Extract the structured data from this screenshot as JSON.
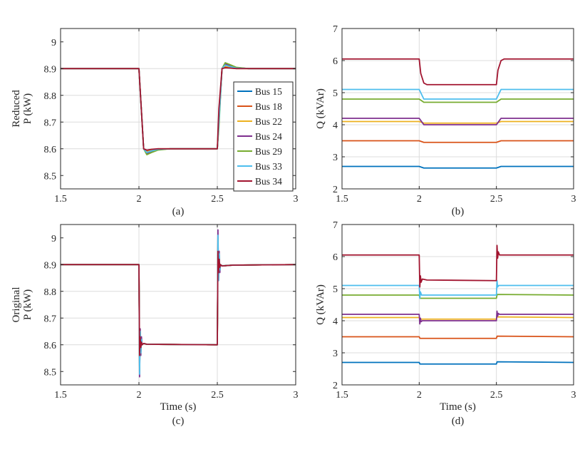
{
  "chart_data": [
    {
      "type": "line",
      "id": "a",
      "caption": "(a)",
      "ylabel_lines": [
        "Reduced",
        "P (kW)"
      ],
      "xlabel": "",
      "xlim": [
        1.5,
        3
      ],
      "ylim": [
        8.45,
        9.05
      ],
      "xticks": [
        1.5,
        2,
        2.5,
        3
      ],
      "xtick_labels": [
        "1.5",
        "2",
        "2.5",
        "3"
      ],
      "yticks": [
        8.5,
        8.6,
        8.7,
        8.8,
        8.9,
        9
      ],
      "ytick_labels": [
        "8.5",
        "8.6",
        "8.7",
        "8.8",
        "8.9",
        "9"
      ],
      "grid": true,
      "legend": {
        "position": "right",
        "entries": [
          "Bus 15",
          "Bus 18",
          "Bus 22",
          "Bus 24",
          "Bus 29",
          "Bus 33",
          "Bus 34"
        ]
      },
      "series": [
        {
          "name": "Bus 15",
          "color": "#0072BD",
          "x": [
            1.5,
            1.99,
            2.0,
            2.01,
            2.03,
            2.05,
            2.08,
            2.12,
            2.2,
            2.49,
            2.5,
            2.51,
            2.53,
            2.55,
            2.58,
            2.62,
            2.7,
            3.0
          ],
          "y": [
            8.9,
            8.9,
            8.9,
            8.8,
            8.6,
            8.585,
            8.59,
            8.597,
            8.6,
            8.6,
            8.6,
            8.7,
            8.9,
            8.915,
            8.91,
            8.903,
            8.9,
            8.9
          ]
        },
        {
          "name": "Bus 18",
          "color": "#D95319",
          "x": [
            1.5,
            1.99,
            2.0,
            2.01,
            2.03,
            2.05,
            2.08,
            2.12,
            2.2,
            2.49,
            2.5,
            2.51,
            2.53,
            2.55,
            2.58,
            2.62,
            2.7,
            3.0
          ],
          "y": [
            8.9,
            8.9,
            8.9,
            8.8,
            8.6,
            8.59,
            8.595,
            8.6,
            8.6,
            8.6,
            8.6,
            8.72,
            8.9,
            8.905,
            8.903,
            8.9,
            8.9,
            8.9
          ]
        },
        {
          "name": "Bus 22",
          "color": "#EDB120",
          "x": [
            1.5,
            1.99,
            2.0,
            2.01,
            2.03,
            2.05,
            2.08,
            2.12,
            2.2,
            2.49,
            2.5,
            2.51,
            2.53,
            2.55,
            2.58,
            2.62,
            2.7,
            3.0
          ],
          "y": [
            8.9,
            8.9,
            8.9,
            8.8,
            8.6,
            8.588,
            8.594,
            8.599,
            8.6,
            8.6,
            8.6,
            8.7,
            8.9,
            8.91,
            8.906,
            8.901,
            8.9,
            8.9
          ]
        },
        {
          "name": "Bus 24",
          "color": "#7E2F8E",
          "x": [
            1.5,
            1.99,
            2.0,
            2.01,
            2.03,
            2.05,
            2.08,
            2.12,
            2.2,
            2.49,
            2.5,
            2.51,
            2.53,
            2.55,
            2.58,
            2.62,
            2.7,
            3.0
          ],
          "y": [
            8.9,
            8.9,
            8.9,
            8.8,
            8.6,
            8.583,
            8.59,
            8.597,
            8.6,
            8.6,
            8.6,
            8.7,
            8.9,
            8.918,
            8.912,
            8.904,
            8.9,
            8.9
          ]
        },
        {
          "name": "Bus 29",
          "color": "#77AC30",
          "x": [
            1.5,
            1.99,
            2.0,
            2.01,
            2.03,
            2.05,
            2.08,
            2.12,
            2.2,
            2.49,
            2.5,
            2.51,
            2.53,
            2.55,
            2.58,
            2.62,
            2.7,
            3.0
          ],
          "y": [
            8.9,
            8.9,
            8.9,
            8.8,
            8.6,
            8.578,
            8.586,
            8.595,
            8.6,
            8.6,
            8.6,
            8.68,
            8.9,
            8.922,
            8.915,
            8.905,
            8.9,
            8.9
          ]
        },
        {
          "name": "Bus 33",
          "color": "#4DBEEE",
          "x": [
            1.5,
            1.99,
            2.0,
            2.01,
            2.03,
            2.05,
            2.08,
            2.12,
            2.2,
            2.49,
            2.5,
            2.51,
            2.53,
            2.55,
            2.58,
            2.62,
            2.7,
            3.0
          ],
          "y": [
            8.9,
            8.9,
            8.9,
            8.8,
            8.6,
            8.586,
            8.592,
            8.598,
            8.6,
            8.6,
            8.6,
            8.7,
            8.9,
            8.913,
            8.908,
            8.902,
            8.9,
            8.9
          ]
        },
        {
          "name": "Bus 34",
          "color": "#A2142F",
          "x": [
            1.5,
            1.99,
            2.0,
            2.01,
            2.03,
            2.05,
            2.08,
            2.12,
            2.2,
            2.49,
            2.5,
            2.51,
            2.53,
            2.55,
            2.58,
            2.62,
            2.7,
            3.0
          ],
          "y": [
            8.9,
            8.9,
            8.9,
            8.8,
            8.6,
            8.595,
            8.598,
            8.6,
            8.6,
            8.6,
            8.6,
            8.75,
            8.9,
            8.903,
            8.902,
            8.9,
            8.9,
            8.9
          ]
        }
      ]
    },
    {
      "type": "line",
      "id": "b",
      "caption": "(b)",
      "ylabel": "Q (kVAr)",
      "xlabel": "",
      "xlim": [
        1.5,
        3
      ],
      "ylim": [
        2,
        7
      ],
      "xticks": [
        1.5,
        2,
        2.5,
        3
      ],
      "xtick_labels": [
        "1.5",
        "2",
        "2.5",
        "3"
      ],
      "yticks": [
        2,
        3,
        4,
        5,
        6,
        7
      ],
      "ytick_labels": [
        "2",
        "3",
        "4",
        "5",
        "6",
        "7"
      ],
      "grid": true,
      "series": [
        {
          "name": "Bus 15",
          "color": "#0072BD",
          "x": [
            1.5,
            2.0,
            2.03,
            2.5,
            2.53,
            3.0
          ],
          "y": [
            2.7,
            2.7,
            2.65,
            2.65,
            2.7,
            2.7
          ]
        },
        {
          "name": "Bus 18",
          "color": "#D95319",
          "x": [
            1.5,
            2.0,
            2.03,
            2.5,
            2.53,
            3.0
          ],
          "y": [
            3.5,
            3.5,
            3.45,
            3.45,
            3.5,
            3.5
          ]
        },
        {
          "name": "Bus 22",
          "color": "#EDB120",
          "x": [
            1.5,
            2.0,
            2.03,
            2.5,
            2.53,
            3.0
          ],
          "y": [
            4.1,
            4.1,
            4.05,
            4.05,
            4.1,
            4.1
          ]
        },
        {
          "name": "Bus 24",
          "color": "#7E2F8E",
          "x": [
            1.5,
            2.0,
            2.03,
            2.5,
            2.53,
            3.0
          ],
          "y": [
            4.2,
            4.2,
            4.0,
            4.0,
            4.2,
            4.2
          ]
        },
        {
          "name": "Bus 29",
          "color": "#77AC30",
          "x": [
            1.5,
            2.0,
            2.03,
            2.5,
            2.53,
            3.0
          ],
          "y": [
            4.8,
            4.8,
            4.7,
            4.7,
            4.8,
            4.8
          ]
        },
        {
          "name": "Bus 33",
          "color": "#4DBEEE",
          "x": [
            1.5,
            2.0,
            2.03,
            2.5,
            2.53,
            3.0
          ],
          "y": [
            5.1,
            5.1,
            4.8,
            4.8,
            5.1,
            5.1
          ]
        },
        {
          "name": "Bus 34",
          "color": "#A2142F",
          "x": [
            1.5,
            2.0,
            2.01,
            2.03,
            2.05,
            2.5,
            2.51,
            2.53,
            2.55,
            3.0
          ],
          "y": [
            6.05,
            6.05,
            5.6,
            5.3,
            5.25,
            5.25,
            5.7,
            6.0,
            6.05,
            6.05
          ]
        }
      ]
    },
    {
      "type": "line",
      "id": "c",
      "caption": "(c)",
      "ylabel_lines": [
        "Original",
        "P (kW)"
      ],
      "xlabel": "Time (s)",
      "xlim": [
        1.5,
        3
      ],
      "ylim": [
        8.45,
        9.05
      ],
      "xticks": [
        1.5,
        2,
        2.5,
        3
      ],
      "xtick_labels": [
        "1.5",
        "2",
        "2.5",
        "3"
      ],
      "yticks": [
        8.5,
        8.6,
        8.7,
        8.8,
        8.9,
        9
      ],
      "ytick_labels": [
        "8.5",
        "8.6",
        "8.7",
        "8.8",
        "8.9",
        "9"
      ],
      "grid": true,
      "series": [
        {
          "name": "Bus 15",
          "color": "#0072BD",
          "x": [
            1.5,
            2.0,
            2.004,
            2.008,
            2.012,
            2.016,
            2.02,
            2.03,
            2.05,
            2.5,
            2.504,
            2.508,
            2.512,
            2.516,
            2.52,
            2.53,
            2.6,
            3.0
          ],
          "y": [
            8.9,
            8.9,
            8.52,
            8.64,
            8.58,
            8.62,
            8.6,
            8.605,
            8.602,
            8.6,
            8.98,
            8.86,
            8.93,
            8.88,
            8.9,
            8.895,
            8.898,
            8.9
          ]
        },
        {
          "name": "Bus 18",
          "color": "#D95319",
          "x": [
            1.5,
            2.0,
            2.004,
            2.008,
            2.012,
            2.016,
            2.02,
            2.03,
            2.05,
            2.5,
            2.504,
            2.508,
            2.512,
            2.516,
            2.52,
            2.53,
            2.6,
            3.0
          ],
          "y": [
            8.9,
            8.9,
            8.55,
            8.63,
            8.59,
            8.61,
            8.6,
            8.605,
            8.602,
            8.6,
            8.96,
            8.87,
            8.92,
            8.89,
            8.9,
            8.895,
            8.898,
            8.9
          ]
        },
        {
          "name": "Bus 22",
          "color": "#EDB120",
          "x": [
            1.5,
            2.0,
            2.004,
            2.008,
            2.012,
            2.016,
            2.02,
            2.03,
            2.05,
            2.5,
            2.504,
            2.508,
            2.512,
            2.516,
            2.52,
            2.53,
            2.6,
            3.0
          ],
          "y": [
            8.9,
            8.9,
            8.53,
            8.64,
            8.58,
            8.62,
            8.6,
            8.605,
            8.602,
            8.6,
            8.97,
            8.86,
            8.93,
            8.88,
            8.9,
            8.895,
            8.898,
            8.9
          ]
        },
        {
          "name": "Bus 24",
          "color": "#7E2F8E",
          "x": [
            1.5,
            2.0,
            2.004,
            2.008,
            2.012,
            2.016,
            2.02,
            2.03,
            2.05,
            2.5,
            2.504,
            2.508,
            2.512,
            2.516,
            2.52,
            2.53,
            2.6,
            3.0
          ],
          "y": [
            8.9,
            8.9,
            8.48,
            8.66,
            8.56,
            8.63,
            8.6,
            8.605,
            8.602,
            8.6,
            9.03,
            8.84,
            8.95,
            8.87,
            8.9,
            8.895,
            8.898,
            8.9
          ]
        },
        {
          "name": "Bus 29",
          "color": "#77AC30",
          "x": [
            1.5,
            2.0,
            2.004,
            2.008,
            2.012,
            2.016,
            2.02,
            2.03,
            2.05,
            2.5,
            2.504,
            2.508,
            2.512,
            2.516,
            2.52,
            2.53,
            2.6,
            3.0
          ],
          "y": [
            8.9,
            8.9,
            8.5,
            8.65,
            8.57,
            8.62,
            8.6,
            8.605,
            8.602,
            8.6,
            9.0,
            8.85,
            8.94,
            8.88,
            8.9,
            8.895,
            8.898,
            8.9
          ]
        },
        {
          "name": "Bus 33",
          "color": "#4DBEEE",
          "x": [
            1.5,
            2.0,
            2.004,
            2.008,
            2.012,
            2.016,
            2.02,
            2.03,
            2.05,
            2.5,
            2.504,
            2.508,
            2.512,
            2.516,
            2.52,
            2.53,
            2.6,
            3.0
          ],
          "y": [
            8.9,
            8.9,
            8.49,
            8.65,
            8.57,
            8.62,
            8.6,
            8.605,
            8.602,
            8.6,
            9.01,
            8.84,
            8.94,
            8.88,
            8.9,
            8.895,
            8.898,
            8.9
          ]
        },
        {
          "name": "Bus 34",
          "color": "#A2142F",
          "x": [
            1.5,
            2.0,
            2.004,
            2.008,
            2.012,
            2.016,
            2.02,
            2.03,
            2.05,
            2.5,
            2.504,
            2.508,
            2.512,
            2.516,
            2.52,
            2.53,
            2.6,
            3.0
          ],
          "y": [
            8.9,
            8.9,
            8.56,
            8.63,
            8.59,
            8.61,
            8.6,
            8.605,
            8.602,
            8.6,
            8.95,
            8.87,
            8.92,
            8.89,
            8.9,
            8.895,
            8.898,
            8.9
          ]
        }
      ]
    },
    {
      "type": "line",
      "id": "d",
      "caption": "(d)",
      "ylabel": "Q (kVAr)",
      "xlabel": "Time (s)",
      "xlim": [
        1.5,
        3
      ],
      "ylim": [
        2,
        7
      ],
      "xticks": [
        1.5,
        2,
        2.5,
        3
      ],
      "xtick_labels": [
        "1.5",
        "2",
        "2.5",
        "3"
      ],
      "yticks": [
        2,
        3,
        4,
        5,
        6,
        7
      ],
      "ytick_labels": [
        "2",
        "3",
        "4",
        "5",
        "6",
        "7"
      ],
      "grid": true,
      "series": [
        {
          "name": "Bus 15",
          "color": "#0072BD",
          "x": [
            1.5,
            2.0,
            2.005,
            2.5,
            2.505,
            3.0
          ],
          "y": [
            2.7,
            2.7,
            2.65,
            2.65,
            2.72,
            2.7
          ]
        },
        {
          "name": "Bus 18",
          "color": "#D95319",
          "x": [
            1.5,
            2.0,
            2.005,
            2.5,
            2.505,
            3.0
          ],
          "y": [
            3.5,
            3.5,
            3.45,
            3.45,
            3.52,
            3.5
          ]
        },
        {
          "name": "Bus 22",
          "color": "#EDB120",
          "x": [
            1.5,
            2.0,
            2.005,
            2.5,
            2.505,
            3.0
          ],
          "y": [
            4.1,
            4.1,
            4.05,
            4.05,
            4.12,
            4.1
          ]
        },
        {
          "name": "Bus 24",
          "color": "#7E2F8E",
          "x": [
            1.5,
            2.0,
            2.004,
            2.008,
            2.012,
            2.02,
            2.5,
            2.504,
            2.508,
            2.512,
            2.52,
            3.0
          ],
          "y": [
            4.2,
            4.2,
            3.9,
            4.08,
            3.97,
            4.0,
            4.0,
            4.3,
            4.14,
            4.23,
            4.2,
            4.2
          ]
        },
        {
          "name": "Bus 29",
          "color": "#77AC30",
          "x": [
            1.5,
            2.0,
            2.005,
            2.5,
            2.505,
            3.0
          ],
          "y": [
            4.8,
            4.8,
            4.7,
            4.7,
            4.82,
            4.8
          ]
        },
        {
          "name": "Bus 33",
          "color": "#4DBEEE",
          "x": [
            1.5,
            2.0,
            2.004,
            2.008,
            2.015,
            2.5,
            2.504,
            2.508,
            2.515,
            3.0
          ],
          "y": [
            5.1,
            5.1,
            4.7,
            4.9,
            4.8,
            4.8,
            5.25,
            5.05,
            5.1,
            5.1
          ]
        },
        {
          "name": "Bus 34",
          "color": "#A2142F",
          "x": [
            1.5,
            2.0,
            2.004,
            2.008,
            2.012,
            2.02,
            2.05,
            2.5,
            2.504,
            2.508,
            2.512,
            2.52,
            2.55,
            3.0
          ],
          "y": [
            6.05,
            6.05,
            5.05,
            5.4,
            5.2,
            5.3,
            5.27,
            5.25,
            6.35,
            5.95,
            6.15,
            6.05,
            6.05,
            6.05
          ]
        }
      ]
    }
  ]
}
